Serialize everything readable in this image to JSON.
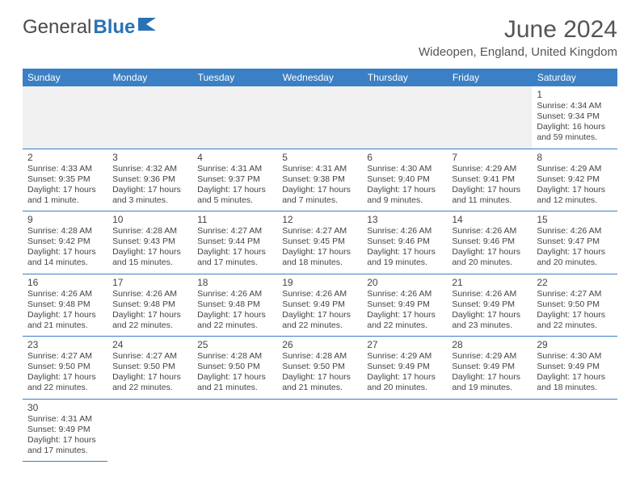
{
  "brand": {
    "part1": "General",
    "part2": "Blue"
  },
  "title": "June 2024",
  "location": "Wideopen, England, United Kingdom",
  "colors": {
    "header_bg": "#3b7fc4",
    "header_text": "#ffffff",
    "border": "#3b7fc4",
    "empty_bg": "#f0f0f0",
    "brand_gray": "#4a4a4a",
    "brand_blue": "#2a72b5",
    "text": "#444444"
  },
  "day_headers": [
    "Sunday",
    "Monday",
    "Tuesday",
    "Wednesday",
    "Thursday",
    "Friday",
    "Saturday"
  ],
  "leading_blanks": 6,
  "days": [
    {
      "n": "1",
      "sunrise": "Sunrise: 4:34 AM",
      "sunset": "Sunset: 9:34 PM",
      "daylight": "Daylight: 16 hours and 59 minutes."
    },
    {
      "n": "2",
      "sunrise": "Sunrise: 4:33 AM",
      "sunset": "Sunset: 9:35 PM",
      "daylight": "Daylight: 17 hours and 1 minute."
    },
    {
      "n": "3",
      "sunrise": "Sunrise: 4:32 AM",
      "sunset": "Sunset: 9:36 PM",
      "daylight": "Daylight: 17 hours and 3 minutes."
    },
    {
      "n": "4",
      "sunrise": "Sunrise: 4:31 AM",
      "sunset": "Sunset: 9:37 PM",
      "daylight": "Daylight: 17 hours and 5 minutes."
    },
    {
      "n": "5",
      "sunrise": "Sunrise: 4:31 AM",
      "sunset": "Sunset: 9:38 PM",
      "daylight": "Daylight: 17 hours and 7 minutes."
    },
    {
      "n": "6",
      "sunrise": "Sunrise: 4:30 AM",
      "sunset": "Sunset: 9:40 PM",
      "daylight": "Daylight: 17 hours and 9 minutes."
    },
    {
      "n": "7",
      "sunrise": "Sunrise: 4:29 AM",
      "sunset": "Sunset: 9:41 PM",
      "daylight": "Daylight: 17 hours and 11 minutes."
    },
    {
      "n": "8",
      "sunrise": "Sunrise: 4:29 AM",
      "sunset": "Sunset: 9:42 PM",
      "daylight": "Daylight: 17 hours and 12 minutes."
    },
    {
      "n": "9",
      "sunrise": "Sunrise: 4:28 AM",
      "sunset": "Sunset: 9:42 PM",
      "daylight": "Daylight: 17 hours and 14 minutes."
    },
    {
      "n": "10",
      "sunrise": "Sunrise: 4:28 AM",
      "sunset": "Sunset: 9:43 PM",
      "daylight": "Daylight: 17 hours and 15 minutes."
    },
    {
      "n": "11",
      "sunrise": "Sunrise: 4:27 AM",
      "sunset": "Sunset: 9:44 PM",
      "daylight": "Daylight: 17 hours and 17 minutes."
    },
    {
      "n": "12",
      "sunrise": "Sunrise: 4:27 AM",
      "sunset": "Sunset: 9:45 PM",
      "daylight": "Daylight: 17 hours and 18 minutes."
    },
    {
      "n": "13",
      "sunrise": "Sunrise: 4:26 AM",
      "sunset": "Sunset: 9:46 PM",
      "daylight": "Daylight: 17 hours and 19 minutes."
    },
    {
      "n": "14",
      "sunrise": "Sunrise: 4:26 AM",
      "sunset": "Sunset: 9:46 PM",
      "daylight": "Daylight: 17 hours and 20 minutes."
    },
    {
      "n": "15",
      "sunrise": "Sunrise: 4:26 AM",
      "sunset": "Sunset: 9:47 PM",
      "daylight": "Daylight: 17 hours and 20 minutes."
    },
    {
      "n": "16",
      "sunrise": "Sunrise: 4:26 AM",
      "sunset": "Sunset: 9:48 PM",
      "daylight": "Daylight: 17 hours and 21 minutes."
    },
    {
      "n": "17",
      "sunrise": "Sunrise: 4:26 AM",
      "sunset": "Sunset: 9:48 PM",
      "daylight": "Daylight: 17 hours and 22 minutes."
    },
    {
      "n": "18",
      "sunrise": "Sunrise: 4:26 AM",
      "sunset": "Sunset: 9:48 PM",
      "daylight": "Daylight: 17 hours and 22 minutes."
    },
    {
      "n": "19",
      "sunrise": "Sunrise: 4:26 AM",
      "sunset": "Sunset: 9:49 PM",
      "daylight": "Daylight: 17 hours and 22 minutes."
    },
    {
      "n": "20",
      "sunrise": "Sunrise: 4:26 AM",
      "sunset": "Sunset: 9:49 PM",
      "daylight": "Daylight: 17 hours and 22 minutes."
    },
    {
      "n": "21",
      "sunrise": "Sunrise: 4:26 AM",
      "sunset": "Sunset: 9:49 PM",
      "daylight": "Daylight: 17 hours and 23 minutes."
    },
    {
      "n": "22",
      "sunrise": "Sunrise: 4:27 AM",
      "sunset": "Sunset: 9:50 PM",
      "daylight": "Daylight: 17 hours and 22 minutes."
    },
    {
      "n": "23",
      "sunrise": "Sunrise: 4:27 AM",
      "sunset": "Sunset: 9:50 PM",
      "daylight": "Daylight: 17 hours and 22 minutes."
    },
    {
      "n": "24",
      "sunrise": "Sunrise: 4:27 AM",
      "sunset": "Sunset: 9:50 PM",
      "daylight": "Daylight: 17 hours and 22 minutes."
    },
    {
      "n": "25",
      "sunrise": "Sunrise: 4:28 AM",
      "sunset": "Sunset: 9:50 PM",
      "daylight": "Daylight: 17 hours and 21 minutes."
    },
    {
      "n": "26",
      "sunrise": "Sunrise: 4:28 AM",
      "sunset": "Sunset: 9:50 PM",
      "daylight": "Daylight: 17 hours and 21 minutes."
    },
    {
      "n": "27",
      "sunrise": "Sunrise: 4:29 AM",
      "sunset": "Sunset: 9:49 PM",
      "daylight": "Daylight: 17 hours and 20 minutes."
    },
    {
      "n": "28",
      "sunrise": "Sunrise: 4:29 AM",
      "sunset": "Sunset: 9:49 PM",
      "daylight": "Daylight: 17 hours and 19 minutes."
    },
    {
      "n": "29",
      "sunrise": "Sunrise: 4:30 AM",
      "sunset": "Sunset: 9:49 PM",
      "daylight": "Daylight: 17 hours and 18 minutes."
    },
    {
      "n": "30",
      "sunrise": "Sunrise: 4:31 AM",
      "sunset": "Sunset: 9:49 PM",
      "daylight": "Daylight: 17 hours and 17 minutes."
    }
  ]
}
